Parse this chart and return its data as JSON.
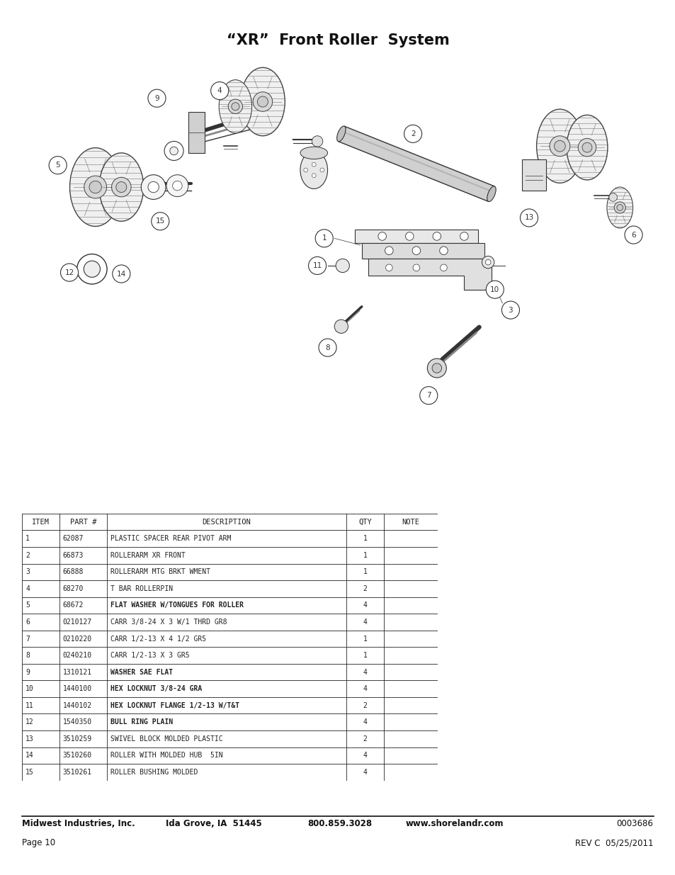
{
  "title": "“XR”  Front Roller  System",
  "title_fontsize": 15,
  "title_fontweight": "bold",
  "table_headers": [
    "ITEM",
    "PART #",
    "DESCRIPTION",
    "QTY",
    "NOTE"
  ],
  "table_rows": [
    [
      "1",
      "62087",
      "PLASTIC SPACER REAR PIVOT ARM",
      "1",
      ""
    ],
    [
      "2",
      "66873",
      "ROLLERARM XR FRONT",
      "1",
      ""
    ],
    [
      "3",
      "66888",
      "ROLLERARM MTG BRKT WMENT",
      "1",
      ""
    ],
    [
      "4",
      "68270",
      "T BAR ROLLERPIN",
      "2",
      ""
    ],
    [
      "5",
      "68672",
      "FLAT WASHER W/TONGUES FOR ROLLER",
      "4",
      ""
    ],
    [
      "6",
      "0210127",
      "CARR 3/8-24 X 3 W/1 THRD GR8",
      "4",
      ""
    ],
    [
      "7",
      "0210220",
      "CARR 1/2-13 X 4 1/2 GR5",
      "1",
      ""
    ],
    [
      "8",
      "0240210",
      "CARR 1/2-13 X 3 GR5",
      "1",
      ""
    ],
    [
      "9",
      "1310121",
      "WASHER SAE FLAT",
      "4",
      ""
    ],
    [
      "10",
      "1440100",
      "HEX LOCKNUT 3/8-24 GRA",
      "4",
      ""
    ],
    [
      "11",
      "1440102",
      "HEX LOCKNUT FLANGE 1/2-13 W/T&T",
      "2",
      ""
    ],
    [
      "12",
      "1540350",
      "BULL RING PLAIN",
      "4",
      ""
    ],
    [
      "13",
      "3510259",
      "SWIVEL BLOCK MOLDED PLASTIC",
      "2",
      ""
    ],
    [
      "14",
      "3510260",
      "ROLLER WITH MOLDED HUB  5IN",
      "4",
      ""
    ],
    [
      "15",
      "3510261",
      "ROLLER BUSHING MOLDED",
      "4",
      ""
    ]
  ],
  "footer_left1": "Midwest Industries, Inc.",
  "footer_left2": "Page 10",
  "footer_center": "Ida Grove, IA  51445",
  "footer_phone": "800.859.3028",
  "footer_web": "www.shorelandr.com",
  "footer_right1": "0003686",
  "footer_right2": "REV C  05/25/2011",
  "bg_color": "#ffffff",
  "table_header_fontsize": 7.5,
  "table_row_fontsize": 7.0,
  "footer_fontsize": 8.5
}
